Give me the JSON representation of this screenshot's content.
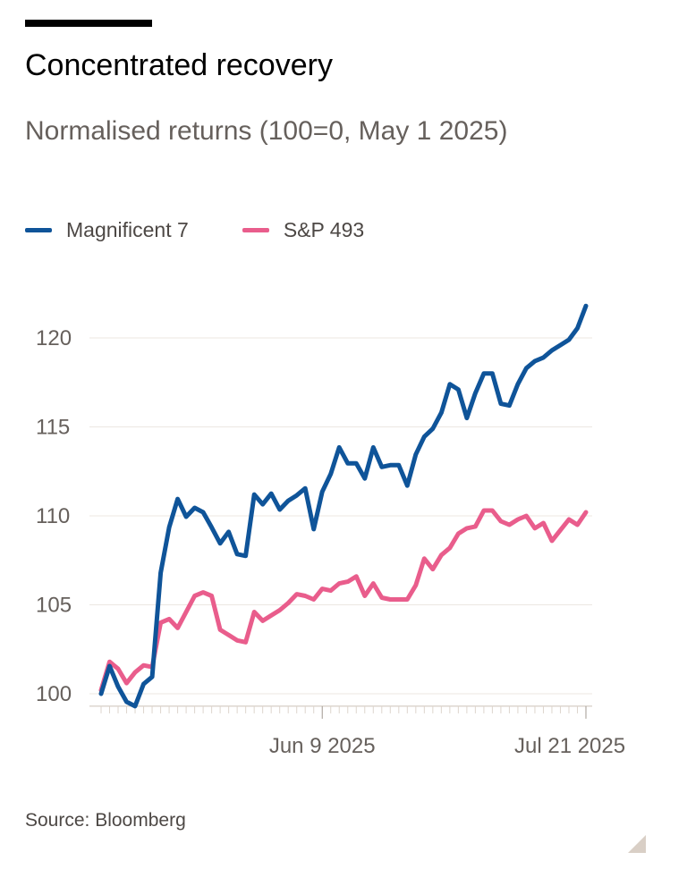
{
  "chart_data": {
    "type": "line",
    "title": "Concentrated recovery",
    "subtitle": "Normalised returns (100=0, May 1 2025)",
    "source": "Source: Bloomberg",
    "xlabel": "",
    "ylabel": "",
    "ylim": [
      99.3,
      122.5
    ],
    "yticks": [
      100,
      105,
      110,
      115,
      120
    ],
    "ytick_labels": [
      "100",
      "105",
      "110",
      "115",
      "120"
    ],
    "xtick_labels": [
      {
        "label": "Jun 9 2025",
        "index": 26
      },
      {
        "label": "Jul 21 2025",
        "index": 57
      }
    ],
    "grid": true,
    "legend_position": "top-left",
    "series": [
      {
        "name": "Magnificent 7",
        "color": "#0f5499",
        "values": [
          100,
          101.56,
          100.4,
          99.55,
          99.3,
          100.55,
          100.95,
          106.8,
          109.35,
          110.95,
          109.95,
          110.45,
          110.2,
          109.35,
          108.45,
          109.1,
          107.85,
          107.75,
          111.2,
          110.65,
          111.25,
          110.35,
          110.85,
          111.15,
          111.55,
          109.25,
          111.35,
          112.35,
          113.85,
          112.95,
          112.95,
          112.1,
          113.85,
          112.75,
          112.85,
          112.85,
          111.7,
          113.45,
          114.45,
          114.9,
          115.8,
          117.4,
          117.1,
          115.5,
          116.9,
          118,
          118,
          116.3,
          116.2,
          117.4,
          118.3,
          118.7,
          118.9,
          119.3,
          119.6,
          119.9,
          120.55,
          121.8
        ]
      },
      {
        "name": "S&P 493",
        "color": "#e95d8c",
        "values": [
          100.2,
          101.8,
          101.4,
          100.6,
          101.2,
          101.6,
          101.5,
          104.0,
          104.2,
          103.7,
          104.6,
          105.5,
          105.7,
          105.5,
          103.6,
          103.3,
          103.0,
          102.9,
          104.6,
          104.1,
          104.4,
          104.7,
          105.1,
          105.6,
          105.5,
          105.3,
          105.9,
          105.8,
          106.2,
          106.3,
          106.6,
          105.5,
          106.2,
          105.4,
          105.3,
          105.3,
          105.3,
          106.1,
          107.6,
          107.0,
          107.8,
          108.2,
          109.0,
          109.3,
          109.4,
          110.3,
          110.3,
          109.7,
          109.5,
          109.8,
          110.0,
          109.3,
          109.6,
          108.6,
          109.2,
          109.8,
          109.5,
          110.2
        ]
      }
    ]
  },
  "legend": {
    "items": [
      "Magnificent 7",
      "S&P 493"
    ]
  }
}
